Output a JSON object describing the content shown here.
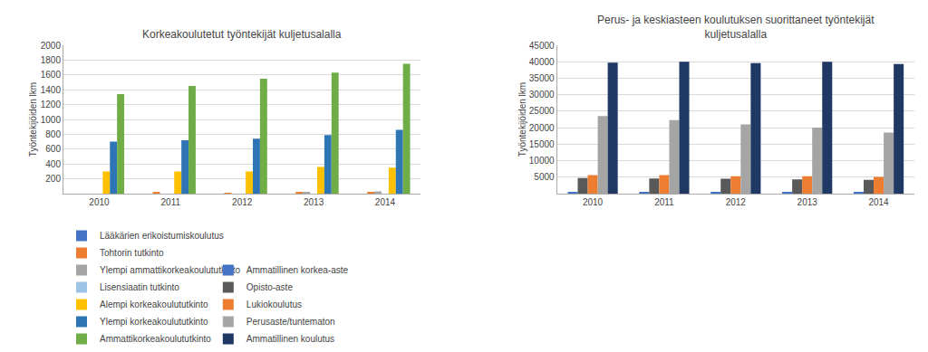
{
  "chart_data": [
    {
      "type": "bar",
      "title": "Korkeakoulutetut työntekijät kuljetusalalla",
      "ylabel": "Työntekijöiden lkm",
      "categories": [
        "2010",
        "2011",
        "2012",
        "2013",
        "2014"
      ],
      "series": [
        {
          "name": "Lääkärien erikoistumiskoulutus",
          "color": "#4472C4",
          "values": [
            0,
            0,
            0,
            0,
            0
          ]
        },
        {
          "name": "Tohtorin tutkinto",
          "color": "#ED7D31",
          "values": [
            0,
            15,
            10,
            20,
            20
          ]
        },
        {
          "name": "Ylempi ammattikorkeakoulututkinto",
          "color": "#A5A5A5",
          "values": [
            0,
            0,
            0,
            20,
            30
          ]
        },
        {
          "name": "Lisensiaatin tutkinto",
          "color": "#9DC3E6",
          "values": [
            0,
            0,
            0,
            0,
            0
          ]
        },
        {
          "name": "Alempi korkeakoulututkinto",
          "color": "#FFC000",
          "values": [
            300,
            300,
            300,
            360,
            350
          ]
        },
        {
          "name": "Ylempi korkeakoulututkinto",
          "color": "#2E75B6",
          "values": [
            700,
            720,
            740,
            790,
            860
          ]
        },
        {
          "name": "Ammattikorkeakoulututkinto",
          "color": "#70AD47",
          "values": [
            1340,
            1450,
            1550,
            1630,
            1750
          ]
        }
      ],
      "ylim": [
        0,
        2000
      ],
      "yticks": [
        200,
        400,
        600,
        800,
        1000,
        1200,
        1400,
        1600,
        1800,
        2000
      ],
      "grid": true,
      "legend": "bottom"
    },
    {
      "type": "bar",
      "title": "Perus- ja keskiasteen koulutuksen suorittaneet työntekijät\nkuljetusalalla",
      "ylabel": "Työntekijöiden lkm",
      "categories": [
        "2010",
        "2011",
        "2012",
        "2013",
        "2014"
      ],
      "series": [
        {
          "name": "Ammatillinen korkea-aste",
          "color": "#4472C4",
          "values": [
            300,
            300,
            300,
            300,
            300
          ]
        },
        {
          "name": "Opisto-aste",
          "color": "#595959",
          "values": [
            4700,
            4600,
            4500,
            4300,
            4200
          ]
        },
        {
          "name": "Lukiokoulutus",
          "color": "#ED7D31",
          "values": [
            5600,
            5600,
            5300,
            5300,
            5100
          ]
        },
        {
          "name": "Perusaste/tuntematon",
          "color": "#A5A5A5",
          "values": [
            23500,
            22300,
            21000,
            20000,
            18500
          ]
        },
        {
          "name": "Ammatillinen koulutus",
          "color": "#203864",
          "values": [
            39700,
            40000,
            39600,
            40000,
            39300
          ]
        }
      ],
      "ylim": [
        0,
        45000
      ],
      "yticks": [
        5000,
        10000,
        15000,
        20000,
        25000,
        30000,
        35000,
        40000,
        45000
      ],
      "grid": true,
      "legend": "bottom"
    }
  ]
}
